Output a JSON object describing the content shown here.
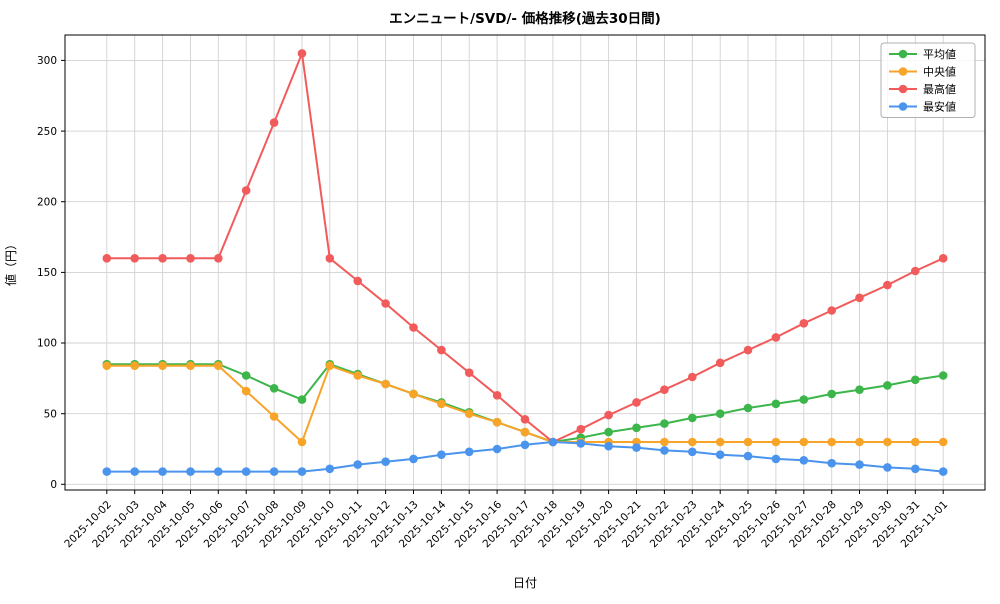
{
  "chart_data": {
    "type": "line",
    "title": "エンニュート/SVD/- 価格推移(過去30日間)",
    "xlabel": "日付",
    "ylabel": "値（円）",
    "ylim": [
      -4,
      318
    ],
    "yticks": [
      0,
      50,
      100,
      150,
      200,
      250,
      300
    ],
    "grid": true,
    "grid_color": "#d2d2d2",
    "axis_color": "#000000",
    "background_color": "#ffffff",
    "legend_position": "upper right",
    "x_margin": 1.5,
    "categories": [
      "2025-10-02",
      "2025-10-03",
      "2025-10-04",
      "2025-10-05",
      "2025-10-06",
      "2025-10-07",
      "2025-10-08",
      "2025-10-09",
      "2025-10-10",
      "2025-10-11",
      "2025-10-12",
      "2025-10-13",
      "2025-10-14",
      "2025-10-15",
      "2025-10-16",
      "2025-10-17",
      "2025-10-18",
      "2025-10-19",
      "2025-10-20",
      "2025-10-21",
      "2025-10-22",
      "2025-10-23",
      "2025-10-24",
      "2025-10-25",
      "2025-10-26",
      "2025-10-27",
      "2025-10-28",
      "2025-10-29",
      "2025-10-30",
      "2025-10-31",
      "2025-11-01"
    ],
    "series": [
      {
        "id": "average",
        "name": "平均値",
        "color": "#3cb54a",
        "values": [
          85,
          85,
          85,
          85,
          85,
          77,
          68,
          60,
          85,
          78,
          71,
          64,
          58,
          51,
          44,
          37,
          30,
          33,
          37,
          40,
          43,
          47,
          50,
          54,
          57,
          60,
          64,
          67,
          70,
          74,
          77
        ]
      },
      {
        "id": "median",
        "name": "中央値",
        "color": "#f7a428",
        "values": [
          84,
          84,
          84,
          84,
          84,
          66,
          48,
          30,
          84,
          77,
          71,
          64,
          57,
          50,
          44,
          37,
          30,
          30,
          30,
          30,
          30,
          30,
          30,
          30,
          30,
          30,
          30,
          30,
          30,
          30,
          30
        ]
      },
      {
        "id": "max",
        "name": "最高値",
        "color": "#f15b5b",
        "values": [
          160,
          160,
          160,
          160,
          160,
          208,
          256,
          305,
          160,
          144,
          128,
          111,
          95,
          79,
          63,
          46,
          30,
          39,
          49,
          58,
          67,
          76,
          86,
          95,
          104,
          114,
          123,
          132,
          141,
          151,
          160
        ]
      },
      {
        "id": "min",
        "name": "最安値",
        "color": "#4a94ee",
        "values": [
          9,
          9,
          9,
          9,
          9,
          9,
          9,
          9,
          11,
          14,
          16,
          18,
          21,
          23,
          25,
          28,
          30,
          29,
          27,
          26,
          24,
          23,
          21,
          20,
          18,
          17,
          15,
          14,
          12,
          11,
          9
        ]
      }
    ]
  }
}
